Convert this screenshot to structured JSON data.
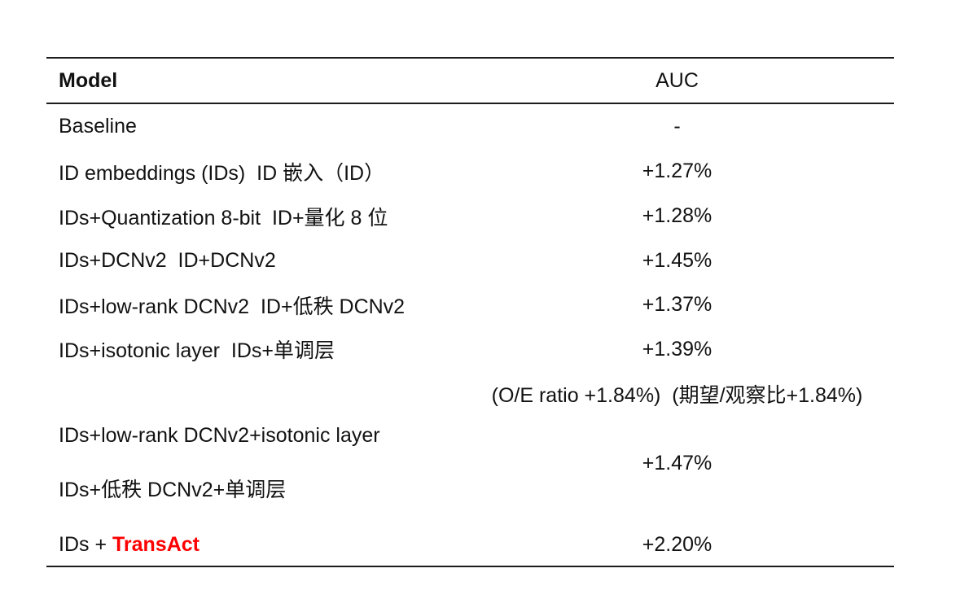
{
  "table": {
    "header": {
      "model": "Model",
      "auc": "AUC"
    },
    "rows": [
      {
        "model": "Baseline",
        "auc": "-"
      },
      {
        "model": "ID embeddings (IDs)  ID 嵌入（ID）",
        "auc": "+1.27%"
      },
      {
        "model": "IDs+Quantization 8-bit  ID+量化 8 位",
        "auc": "+1.28%"
      },
      {
        "model": "IDs+DCNv2  ID+DCNv2",
        "auc": "+1.45%"
      },
      {
        "model": "IDs+low-rank DCNv2  ID+低秩 DCNv2",
        "auc": "+1.37%"
      },
      {
        "model": "IDs+isotonic layer  IDs+单调层",
        "auc": "+1.39%"
      },
      {
        "model": "",
        "auc": "(O/E ratio +1.84%)  (期望/观察比+1.84%)"
      },
      {
        "model_line1": "IDs+low-rank DCNv2+isotonic layer",
        "model_line2": "IDs+低秩 DCNv2+单调层",
        "auc": "+1.47%"
      },
      {
        "model_prefix": "IDs + ",
        "model_highlight": "TransAct",
        "auc": "+2.20%"
      }
    ],
    "highlight_color": "#ff0000",
    "rule_color": "#1c1c1c"
  }
}
